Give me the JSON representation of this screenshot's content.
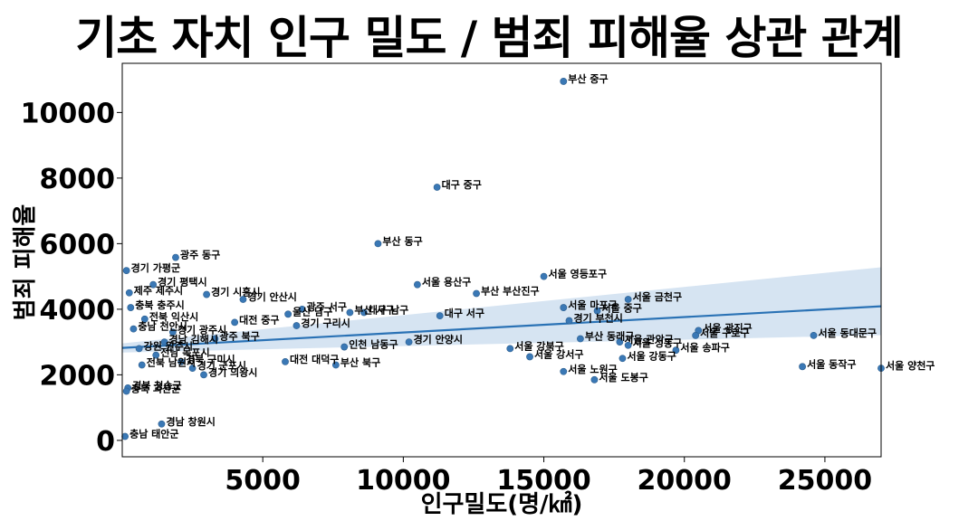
{
  "chart_data": {
    "type": "scatter",
    "title": "기초 자치 인구 밀도 / 범죄 피해율 상관 관계",
    "xlabel": "인구밀도(명/㎢)",
    "ylabel": "범죄 피해율",
    "xlim": [
      0,
      27000
    ],
    "ylim": [
      -500,
      11500
    ],
    "xticks": [
      5000,
      10000,
      15000,
      20000,
      25000
    ],
    "yticks": [
      0,
      2000,
      4000,
      6000,
      8000,
      10000
    ],
    "grid": false,
    "point_color": "#3a78b5",
    "regression": {
      "x": [
        0,
        27000
      ],
      "y": [
        2820,
        4090
      ],
      "ci_upper": [
        2960,
        5280
      ],
      "ci_lower": [
        2680,
        3210
      ],
      "color": "#2a72b5",
      "ci_color": "#c5d9ec"
    },
    "points": [
      {
        "x": 15700,
        "y": 10950,
        "label": "부산 중구"
      },
      {
        "x": 11200,
        "y": 7720,
        "label": "대구 중구"
      },
      {
        "x": 9100,
        "y": 6000,
        "label": "부산 동구"
      },
      {
        "x": 1900,
        "y": 5580,
        "label": "광주 동구"
      },
      {
        "x": 150,
        "y": 5180,
        "label": "경기 가평군"
      },
      {
        "x": 15000,
        "y": 5000,
        "label": "서울 영등포구"
      },
      {
        "x": 10500,
        "y": 4750,
        "label": "서울 용산구"
      },
      {
        "x": 12600,
        "y": 4480,
        "label": "부산 부산진구"
      },
      {
        "x": 1100,
        "y": 4750,
        "label": "경기 평택시"
      },
      {
        "x": 250,
        "y": 4500,
        "label": "제주 제주시"
      },
      {
        "x": 3000,
        "y": 4450,
        "label": "경기 시흥시"
      },
      {
        "x": 4300,
        "y": 4300,
        "label": "경기 안산시"
      },
      {
        "x": 18000,
        "y": 4300,
        "label": "서울 금천구"
      },
      {
        "x": 6400,
        "y": 4000,
        "label": "광주 서구"
      },
      {
        "x": 15700,
        "y": 4050,
        "label": "서울 마포구"
      },
      {
        "x": 8600,
        "y": 3900,
        "label": "대구 남구"
      },
      {
        "x": 11300,
        "y": 3800,
        "label": "대구 서구"
      },
      {
        "x": 16900,
        "y": 3950,
        "label": "서울 중구"
      },
      {
        "x": 5900,
        "y": 3850,
        "label": "울산 남구"
      },
      {
        "x": 4000,
        "y": 3600,
        "label": "대전 중구"
      },
      {
        "x": 8100,
        "y": 3900,
        "label": "부산 서구"
      },
      {
        "x": 15900,
        "y": 3650,
        "label": "경기 부천시"
      },
      {
        "x": 6200,
        "y": 3500,
        "label": "경기 구리시"
      },
      {
        "x": 20500,
        "y": 3350,
        "label": "서울 광진구"
      },
      {
        "x": 20400,
        "y": 3200,
        "label": "서울 구로구"
      },
      {
        "x": 24600,
        "y": 3200,
        "label": "서울 동대문구"
      },
      {
        "x": 16300,
        "y": 3100,
        "label": "부산 동래구"
      },
      {
        "x": 17700,
        "y": 3000,
        "label": "서울 관악구"
      },
      {
        "x": 18000,
        "y": 2900,
        "label": "서울 성동구"
      },
      {
        "x": 19700,
        "y": 2750,
        "label": "서울 송파구"
      },
      {
        "x": 13800,
        "y": 2800,
        "label": "서울 강북구"
      },
      {
        "x": 10200,
        "y": 3000,
        "label": "경기 안양시"
      },
      {
        "x": 7900,
        "y": 2850,
        "label": "인천 남동구"
      },
      {
        "x": 14500,
        "y": 2550,
        "label": "서울 강서구"
      },
      {
        "x": 17800,
        "y": 2500,
        "label": "서울 강동구"
      },
      {
        "x": 5800,
        "y": 2400,
        "label": "대전 대덕구"
      },
      {
        "x": 7600,
        "y": 2300,
        "label": "부산 북구"
      },
      {
        "x": 24200,
        "y": 2250,
        "label": "서울 동작구"
      },
      {
        "x": 27000,
        "y": 2200,
        "label": "서울 양천구"
      },
      {
        "x": 15700,
        "y": 2100,
        "label": "서울 노원구"
      },
      {
        "x": 16800,
        "y": 1850,
        "label": "서울 도봉구"
      },
      {
        "x": 2900,
        "y": 2000,
        "label": "경기 의왕시"
      },
      {
        "x": 2500,
        "y": 2200,
        "label": "경기 군포시"
      },
      {
        "x": 200,
        "y": 1600,
        "label": "경북 청송군"
      },
      {
        "x": 150,
        "y": 1500,
        "label": "충북 괴산군"
      },
      {
        "x": 1400,
        "y": 500,
        "label": "경남 창원시"
      },
      {
        "x": 100,
        "y": 120,
        "label": "충남 태안군"
      },
      {
        "x": 300,
        "y": 4050,
        "label": "충북 충주시"
      },
      {
        "x": 800,
        "y": 3700,
        "label": "전북 익산시"
      },
      {
        "x": 1800,
        "y": 3300,
        "label": "경기 광주시"
      },
      {
        "x": 3300,
        "y": 3100,
        "label": "광주 북구"
      },
      {
        "x": 600,
        "y": 2800,
        "label": "강원 원주시"
      },
      {
        "x": 1200,
        "y": 2600,
        "label": "전남 목포시"
      },
      {
        "x": 2100,
        "y": 2400,
        "label": "경북 구미시"
      },
      {
        "x": 400,
        "y": 3400,
        "label": "충남 천안시"
      },
      {
        "x": 1500,
        "y": 3000,
        "label": "경남 김해시"
      },
      {
        "x": 700,
        "y": 2300,
        "label": "전북 남원시"
      }
    ]
  }
}
